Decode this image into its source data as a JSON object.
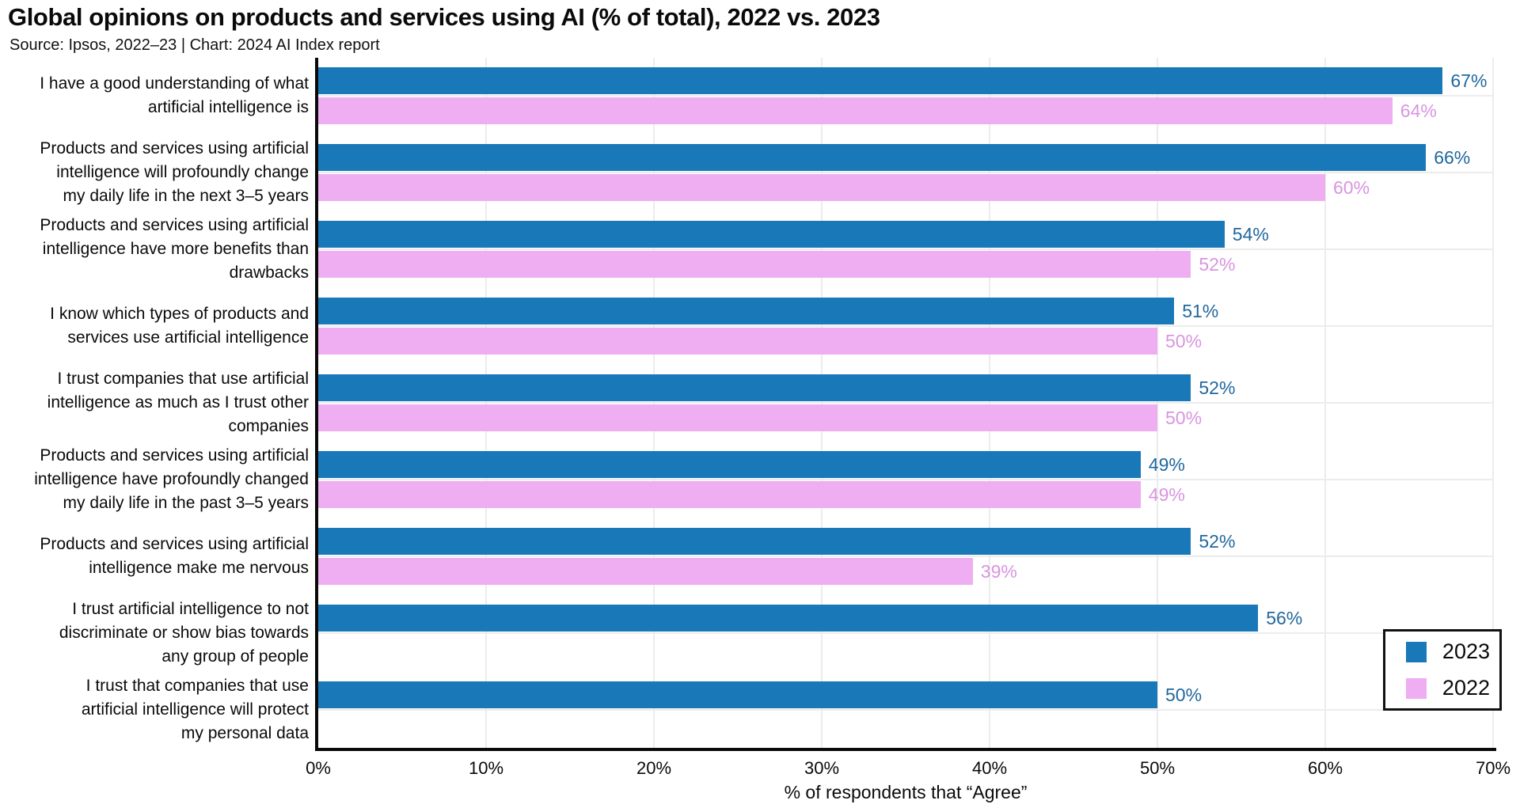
{
  "chart_data": {
    "type": "bar",
    "orientation": "horizontal",
    "title": "Global opinions on products and services using AI (% of total), 2022 vs. 2023",
    "subtitle": "Source: Ipsos, 2022–23 | Chart: 2024 AI Index report",
    "xlabel": "% of respondents that “Agree”",
    "xlim": [
      0,
      70
    ],
    "xtick_values": [
      0,
      10,
      20,
      30,
      40,
      50,
      60,
      70
    ],
    "xtick_labels": [
      "0%",
      "10%",
      "20%",
      "30%",
      "40%",
      "50%",
      "60%",
      "70%"
    ],
    "grid": true,
    "legend_position": "bottom-right",
    "value_suffix": "%",
    "categories": [
      [
        "I have a good understanding of what",
        "artificial intelligence is"
      ],
      [
        "Products and services using artificial",
        "intelligence will profoundly change",
        "my daily life in the next 3–5 years"
      ],
      [
        "Products and services using artificial",
        "intelligence have more benefits than",
        "drawbacks"
      ],
      [
        "I know which types of products and",
        "services use artificial intelligence"
      ],
      [
        "I trust companies that use artificial",
        "intelligence as much as I trust other",
        "companies"
      ],
      [
        "Products and services using artificial",
        "intelligence have profoundly changed",
        "my daily life in the past 3–5 years"
      ],
      [
        "Products and services using artificial",
        "intelligence make me nervous"
      ],
      [
        "I trust artificial intelligence to not",
        "discriminate or show bias towards",
        "any group of people"
      ],
      [
        "I trust that companies that use",
        "artificial intelligence will protect",
        "my personal data"
      ]
    ],
    "series": [
      {
        "name": "2023",
        "color": "#1979B8",
        "label_color": "#21689E",
        "values": [
          67,
          66,
          54,
          51,
          52,
          49,
          52,
          56,
          50
        ]
      },
      {
        "name": "2022",
        "color": "#EEAEF1",
        "label_color": "#D994E0",
        "values": [
          64,
          60,
          52,
          50,
          50,
          49,
          39,
          null,
          null
        ]
      }
    ]
  }
}
